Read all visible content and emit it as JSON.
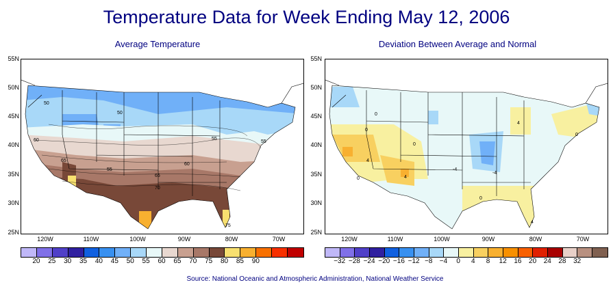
{
  "title": "Temperature Data for Week Ending May 12, 2006",
  "left_map": {
    "subtitle": "Average Temperature",
    "legend": {
      "colors": [
        "#c0b8f8",
        "#8070e8",
        "#5040c8",
        "#3020a0",
        "#1060e0",
        "#3890f0",
        "#70b0f8",
        "#a8d8f8",
        "#e8f8f8",
        "#e8d8d0",
        "#c8a090",
        "#a87868",
        "#784838",
        "#f8e070",
        "#f8b030",
        "#f87000",
        "#f83000",
        "#c00000"
      ],
      "labels": [
        "20",
        "25",
        "30",
        "35",
        "40",
        "45",
        "50",
        "55",
        "60",
        "65",
        "70",
        "75",
        "80",
        "85",
        "90"
      ]
    },
    "contour_labels": [
      "50",
      "50",
      "60",
      "65",
      "55",
      "65",
      "70",
      "60",
      "55",
      "55",
      "75"
    ]
  },
  "right_map": {
    "subtitle": "Deviation Between Average and Normal",
    "legend": {
      "colors": [
        "#c0b8f8",
        "#8070e8",
        "#5040c8",
        "#3020a0",
        "#1060e0",
        "#3890f0",
        "#70b0f8",
        "#a8d8f8",
        "#e8f8f8",
        "#f8f0a0",
        "#f8d060",
        "#f8b030",
        "#f89000",
        "#f86000",
        "#e02000",
        "#a80000",
        "#e8d0c8",
        "#b89080",
        "#806050"
      ],
      "labels": [
        "−32",
        "−28",
        "−24",
        "−20",
        "−16",
        "−12",
        "−8",
        "−4",
        "0",
        "4",
        "8",
        "12",
        "16",
        "20",
        "24",
        "28",
        "32"
      ]
    },
    "contour_labels": [
      "0",
      "4",
      "0",
      "4",
      "0",
      "-4",
      "-4",
      "0",
      "4",
      "0",
      "0",
      "4"
    ]
  },
  "axes": {
    "lat_labels": [
      "55N",
      "50N",
      "45N",
      "40N",
      "35N",
      "30N",
      "25N"
    ],
    "lon_labels": [
      "120W",
      "110W",
      "100W",
      "90W",
      "80W",
      "70W"
    ]
  },
  "source": "Source:  National Oceanic and Atmospheric Administration, National Weather Service"
}
